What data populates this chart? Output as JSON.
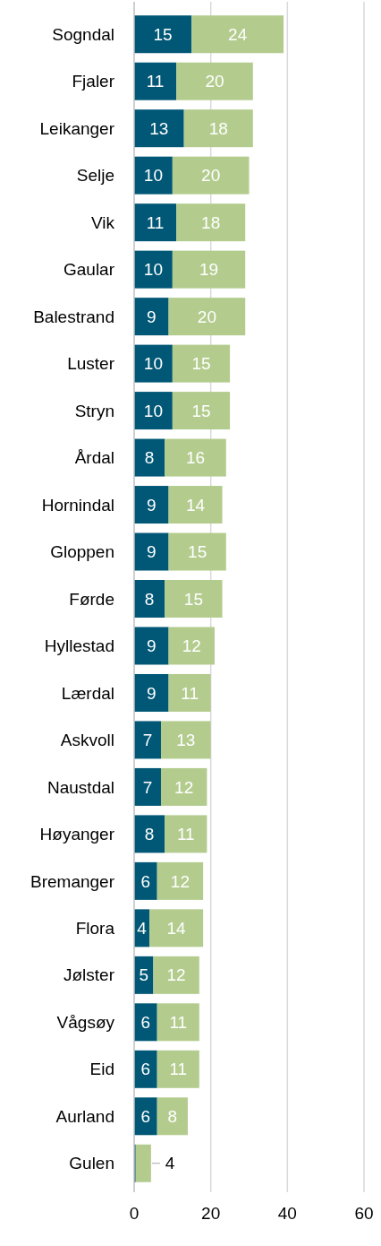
{
  "chart_data": {
    "type": "bar",
    "orientation": "horizontal",
    "stacked": true,
    "categories": [
      "Sogndal",
      "Fjaler",
      "Leikanger",
      "Selje",
      "Vik",
      "Gaular",
      "Balestrand",
      "Luster",
      "Stryn",
      "Årdal",
      "Hornindal",
      "Gloppen",
      "Førde",
      "Hyllestad",
      "Lærdal",
      "Askvoll",
      "Naustdal",
      "Høyanger",
      "Bremanger",
      "Flora",
      "Jølster",
      "Vågsøy",
      "Eid",
      "Aurland",
      "Gulen"
    ],
    "series": [
      {
        "color": "#005776",
        "values": [
          15,
          11,
          13,
          10,
          11,
          10,
          9,
          10,
          10,
          8,
          9,
          9,
          8,
          9,
          9,
          7,
          7,
          8,
          6,
          4,
          5,
          6,
          6,
          6,
          0.4
        ],
        "value_labels": [
          "15",
          "11",
          "13",
          "10",
          "11",
          "10",
          "9",
          "10",
          "10",
          "8",
          "9",
          "9",
          "8",
          "9",
          "9",
          "7",
          "7",
          "8",
          "6",
          "4",
          "5",
          "6",
          "6",
          "6",
          null
        ]
      },
      {
        "color": "#b3cc8e",
        "values": [
          24,
          20,
          18,
          20,
          18,
          19,
          20,
          15,
          15,
          16,
          14,
          15,
          15,
          12,
          11,
          13,
          12,
          11,
          12,
          14,
          12,
          11,
          11,
          8,
          4
        ],
        "value_labels": [
          "24",
          "20",
          "18",
          "20",
          "18",
          "19",
          "20",
          "15",
          "15",
          "16",
          "14",
          "15",
          "15",
          "12",
          "11",
          "13",
          "12",
          "11",
          "12",
          "14",
          "12",
          "11",
          "11",
          "8",
          "4"
        ]
      }
    ],
    "xlim": [
      0,
      60
    ],
    "xticks": [
      0,
      20,
      40,
      60
    ],
    "grid": "x"
  }
}
